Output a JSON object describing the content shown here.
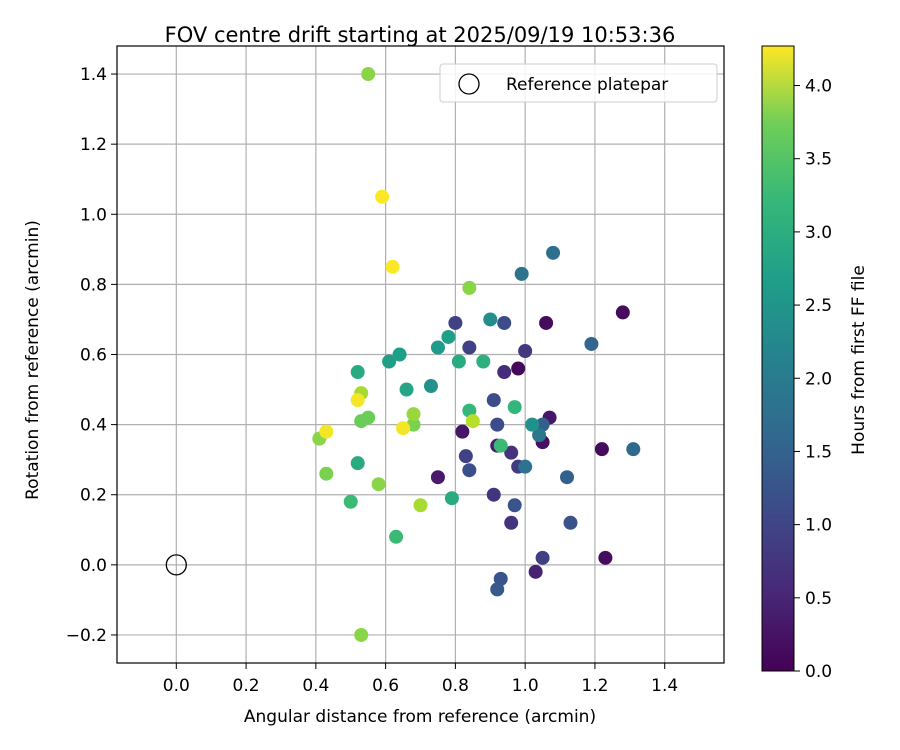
{
  "chart_data": {
    "type": "scatter",
    "title": "FOV centre drift starting at 2025/09/19 10:53:36",
    "xlabel": "Angular distance from reference (arcmin)",
    "ylabel": "Rotation from reference (arcmin)",
    "xlim": [
      -0.17,
      1.57
    ],
    "ylim": [
      -0.28,
      1.48
    ],
    "xticks": [
      0.0,
      0.2,
      0.4,
      0.6,
      0.8,
      1.0,
      1.2,
      1.4
    ],
    "xtick_labels": [
      "0.0",
      "0.2",
      "0.4",
      "0.6",
      "0.8",
      "1.0",
      "1.2",
      "1.4"
    ],
    "yticks": [
      -0.2,
      0.0,
      0.2,
      0.4,
      0.6,
      0.8,
      1.0,
      1.2,
      1.4
    ],
    "ytick_labels": [
      "−0.2",
      "0.0",
      "0.2",
      "0.4",
      "0.6",
      "0.8",
      "1.0",
      "1.2",
      "1.4"
    ],
    "grid": true,
    "legend": {
      "position": "top-right",
      "entries": [
        "Reference platepar"
      ]
    },
    "reference_point": {
      "x": 0.0,
      "y": 0.0,
      "label": "Reference platepar"
    },
    "colorbar": {
      "label": "Hours from first FF file",
      "range": [
        0.0,
        4.27
      ],
      "ticks": [
        0.0,
        0.5,
        1.0,
        1.5,
        2.0,
        2.5,
        3.0,
        3.5,
        4.0
      ],
      "tick_labels": [
        "0.0",
        "0.5",
        "1.0",
        "1.5",
        "2.0",
        "2.5",
        "3.0",
        "3.5",
        "4.0"
      ],
      "colormap": "viridis"
    },
    "points": [
      {
        "x": 0.98,
        "y": 0.56,
        "hours": 0.1
      },
      {
        "x": 1.06,
        "y": 0.69,
        "hours": 0.12
      },
      {
        "x": 1.28,
        "y": 0.72,
        "hours": 0.13
      },
      {
        "x": 1.22,
        "y": 0.33,
        "hours": 0.12
      },
      {
        "x": 1.23,
        "y": 0.02,
        "hours": 0.15
      },
      {
        "x": 1.07,
        "y": 0.42,
        "hours": 0.25
      },
      {
        "x": 1.05,
        "y": 0.35,
        "hours": 0.2
      },
      {
        "x": 0.82,
        "y": 0.38,
        "hours": 0.25
      },
      {
        "x": 0.75,
        "y": 0.25,
        "hours": 0.3
      },
      {
        "x": 0.92,
        "y": 0.34,
        "hours": 0.35
      },
      {
        "x": 1.03,
        "y": -0.02,
        "hours": 0.4
      },
      {
        "x": 0.94,
        "y": 0.55,
        "hours": 0.55
      },
      {
        "x": 0.96,
        "y": 0.32,
        "hours": 0.6
      },
      {
        "x": 0.91,
        "y": 0.2,
        "hours": 0.65
      },
      {
        "x": 0.96,
        "y": 0.12,
        "hours": 0.65
      },
      {
        "x": 0.98,
        "y": 0.28,
        "hours": 0.75
      },
      {
        "x": 1.0,
        "y": 0.61,
        "hours": 0.7
      },
      {
        "x": 0.8,
        "y": 0.69,
        "hours": 0.85
      },
      {
        "x": 0.84,
        "y": 0.62,
        "hours": 0.85
      },
      {
        "x": 0.83,
        "y": 0.31,
        "hours": 0.85
      },
      {
        "x": 1.05,
        "y": 0.02,
        "hours": 0.8
      },
      {
        "x": 0.94,
        "y": 0.69,
        "hours": 1.0
      },
      {
        "x": 0.91,
        "y": 0.47,
        "hours": 1.0
      },
      {
        "x": 0.92,
        "y": 0.4,
        "hours": 1.0
      },
      {
        "x": 0.84,
        "y": 0.27,
        "hours": 1.05
      },
      {
        "x": 0.97,
        "y": 0.17,
        "hours": 1.1
      },
      {
        "x": 1.13,
        "y": 0.12,
        "hours": 1.1
      },
      {
        "x": 0.93,
        "y": -0.04,
        "hours": 1.1
      },
      {
        "x": 0.92,
        "y": -0.07,
        "hours": 1.2
      },
      {
        "x": 1.05,
        "y": 0.4,
        "hours": 1.3
      },
      {
        "x": 1.12,
        "y": 0.25,
        "hours": 1.3
      },
      {
        "x": 1.19,
        "y": 0.63,
        "hours": 1.4
      },
      {
        "x": 1.31,
        "y": 0.33,
        "hours": 1.45
      },
      {
        "x": 0.99,
        "y": 0.83,
        "hours": 1.65
      },
      {
        "x": 1.08,
        "y": 0.89,
        "hours": 1.55
      },
      {
        "x": 1.0,
        "y": 0.28,
        "hours": 1.6
      },
      {
        "x": 1.04,
        "y": 0.37,
        "hours": 1.7
      },
      {
        "x": 0.9,
        "y": 0.7,
        "hours": 2.1
      },
      {
        "x": 0.73,
        "y": 0.51,
        "hours": 2.15
      },
      {
        "x": 1.02,
        "y": 0.4,
        "hours": 2.15
      },
      {
        "x": 0.75,
        "y": 0.62,
        "hours": 2.3
      },
      {
        "x": 0.78,
        "y": 0.65,
        "hours": 2.4
      },
      {
        "x": 0.64,
        "y": 0.6,
        "hours": 2.4
      },
      {
        "x": 0.61,
        "y": 0.58,
        "hours": 2.4
      },
      {
        "x": 0.66,
        "y": 0.5,
        "hours": 2.5
      },
      {
        "x": 0.81,
        "y": 0.58,
        "hours": 2.6
      },
      {
        "x": 0.88,
        "y": 0.58,
        "hours": 2.7
      },
      {
        "x": 0.52,
        "y": 0.55,
        "hours": 2.6
      },
      {
        "x": 0.52,
        "y": 0.29,
        "hours": 2.6
      },
      {
        "x": 0.79,
        "y": 0.19,
        "hours": 2.6
      },
      {
        "x": 0.97,
        "y": 0.45,
        "hours": 2.8
      },
      {
        "x": 0.84,
        "y": 0.44,
        "hours": 2.85
      },
      {
        "x": 0.93,
        "y": 0.34,
        "hours": 2.9
      },
      {
        "x": 0.5,
        "y": 0.18,
        "hours": 2.9
      },
      {
        "x": 0.63,
        "y": 0.08,
        "hours": 2.9
      },
      {
        "x": 0.53,
        "y": 0.41,
        "hours": 3.3
      },
      {
        "x": 0.55,
        "y": 0.42,
        "hours": 3.3
      },
      {
        "x": 0.68,
        "y": 0.4,
        "hours": 3.4
      },
      {
        "x": 0.43,
        "y": 0.26,
        "hours": 3.4
      },
      {
        "x": 0.58,
        "y": 0.23,
        "hours": 3.5
      },
      {
        "x": 0.41,
        "y": 0.36,
        "hours": 3.5
      },
      {
        "x": 0.55,
        "y": 1.4,
        "hours": 3.5
      },
      {
        "x": 0.84,
        "y": 0.79,
        "hours": 3.5
      },
      {
        "x": 0.53,
        "y": -0.2,
        "hours": 3.5
      },
      {
        "x": 0.68,
        "y": 0.43,
        "hours": 3.6
      },
      {
        "x": 0.53,
        "y": 0.49,
        "hours": 3.7
      },
      {
        "x": 0.7,
        "y": 0.17,
        "hours": 3.7
      },
      {
        "x": 0.85,
        "y": 0.41,
        "hours": 3.8
      },
      {
        "x": 0.43,
        "y": 0.38,
        "hours": 4.2
      },
      {
        "x": 0.52,
        "y": 0.47,
        "hours": 4.2
      },
      {
        "x": 0.65,
        "y": 0.39,
        "hours": 4.2
      },
      {
        "x": 0.62,
        "y": 0.85,
        "hours": 4.25
      },
      {
        "x": 0.59,
        "y": 1.05,
        "hours": 4.27
      }
    ]
  }
}
